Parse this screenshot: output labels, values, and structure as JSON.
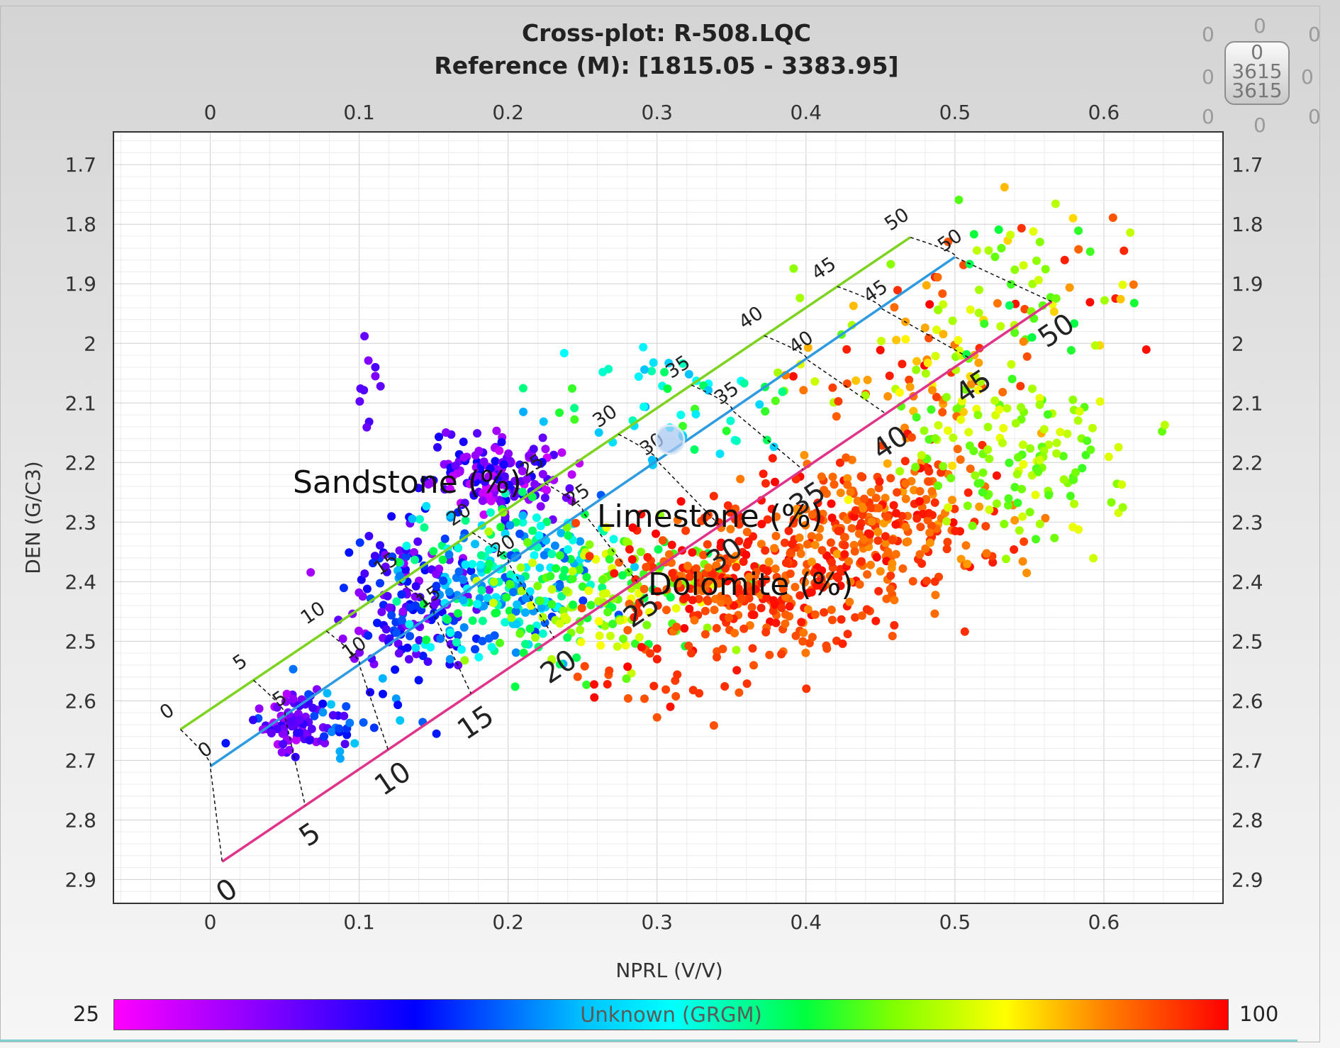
{
  "chart_data": {
    "type": "scatter",
    "title": "Cross-plot: R-508.LQC",
    "subtitle": "Reference (M): [1815.05 - 3383.95]",
    "xlabel": "NPRL (V/V)",
    "ylabel": "DEN (G/C3)",
    "xlim": [
      -0.065,
      0.68
    ],
    "ylim": [
      2.94,
      1.645
    ],
    "y_inverted": true,
    "grid": true,
    "x_ticks": [
      "0",
      "0.1",
      "0.2",
      "0.3",
      "0.4",
      "0.5",
      "0.6"
    ],
    "y_ticks": [
      "1.7",
      "1.8",
      "1.9",
      "2",
      "2.1",
      "2.2",
      "2.3",
      "2.4",
      "2.5",
      "2.6",
      "2.7",
      "2.8",
      "2.9"
    ],
    "colorbar": {
      "label": "Unknown (GRGM)",
      "min": "25",
      "max": "100"
    },
    "lithology_lines": [
      {
        "name": "Sandstone (%)",
        "color": "#7ed321",
        "points": [
          [
            -0.02,
            2.648
          ],
          [
            0.47,
            1.822
          ]
        ],
        "ticks": [
          "0",
          "5",
          "10",
          "15",
          "20",
          "25",
          "30",
          "35",
          "40",
          "45",
          "50"
        ]
      },
      {
        "name": "Limestone (%)",
        "color": "#2e9be0",
        "points": [
          [
            0.0,
            2.71
          ],
          [
            0.5,
            1.855
          ]
        ],
        "ticks": [
          "0",
          "5",
          "10",
          "15",
          "20",
          "25",
          "30",
          "35",
          "40",
          "45",
          "50"
        ]
      },
      {
        "name": "Dolomite (%)",
        "color": "#e0338a",
        "points": [
          [
            0.008,
            2.87
          ],
          [
            0.565,
            1.93
          ]
        ],
        "ticks": [
          "0",
          "5",
          "10",
          "15",
          "20",
          "25",
          "30",
          "35",
          "40",
          "45",
          "50"
        ]
      }
    ],
    "cluster_model": [
      {
        "cx": 0.053,
        "cy": 2.64,
        "sx": 0.009,
        "sy": 0.025,
        "n": 70,
        "gr": [
          30,
          42
        ]
      },
      {
        "cx": 0.09,
        "cy": 2.63,
        "sx": 0.025,
        "sy": 0.04,
        "n": 45,
        "gr": [
          35,
          58
        ]
      },
      {
        "cx": 0.14,
        "cy": 2.42,
        "sx": 0.025,
        "sy": 0.06,
        "n": 150,
        "gr": [
          32,
          50
        ]
      },
      {
        "cx": 0.19,
        "cy": 2.22,
        "sx": 0.025,
        "sy": 0.035,
        "n": 150,
        "gr": [
          28,
          45
        ]
      },
      {
        "cx": 0.2,
        "cy": 2.4,
        "sx": 0.035,
        "sy": 0.06,
        "n": 240,
        "gr": [
          48,
          72
        ]
      },
      {
        "cx": 0.27,
        "cy": 2.43,
        "sx": 0.04,
        "sy": 0.06,
        "n": 160,
        "gr": [
          70,
          85
        ]
      },
      {
        "cx": 0.37,
        "cy": 2.4,
        "sx": 0.05,
        "sy": 0.06,
        "n": 320,
        "gr": [
          92,
          100
        ]
      },
      {
        "cx": 0.45,
        "cy": 2.3,
        "sx": 0.04,
        "sy": 0.06,
        "n": 260,
        "gr": [
          90,
          100
        ]
      },
      {
        "cx": 0.47,
        "cy": 2.05,
        "sx": 0.04,
        "sy": 0.08,
        "n": 120,
        "gr": [
          75,
          100
        ]
      },
      {
        "cx": 0.55,
        "cy": 2.2,
        "sx": 0.04,
        "sy": 0.06,
        "n": 130,
        "gr": [
          74,
          84
        ]
      },
      {
        "cx": 0.55,
        "cy": 1.9,
        "sx": 0.04,
        "sy": 0.08,
        "n": 60,
        "gr": [
          70,
          100
        ]
      },
      {
        "cx": 0.31,
        "cy": 2.1,
        "sx": 0.04,
        "sy": 0.05,
        "n": 55,
        "gr": [
          55,
          75
        ]
      },
      {
        "cx": 0.3,
        "cy": 2.58,
        "sx": 0.03,
        "sy": 0.04,
        "n": 30,
        "gr": [
          94,
          100
        ]
      },
      {
        "cx": 0.107,
        "cy": 2.08,
        "sx": 0.004,
        "sy": 0.08,
        "n": 10,
        "gr": [
          35,
          40
        ]
      }
    ]
  },
  "corner_widget": {
    "top": "0",
    "top_left": "0",
    "top_right": "0",
    "mid_left": "0",
    "mid_right": "0",
    "bottom": "0",
    "bottom_left": "0",
    "bottom_right": "0",
    "knob_top": "0",
    "knob_mid": "3615",
    "knob_bottom": "3615"
  }
}
